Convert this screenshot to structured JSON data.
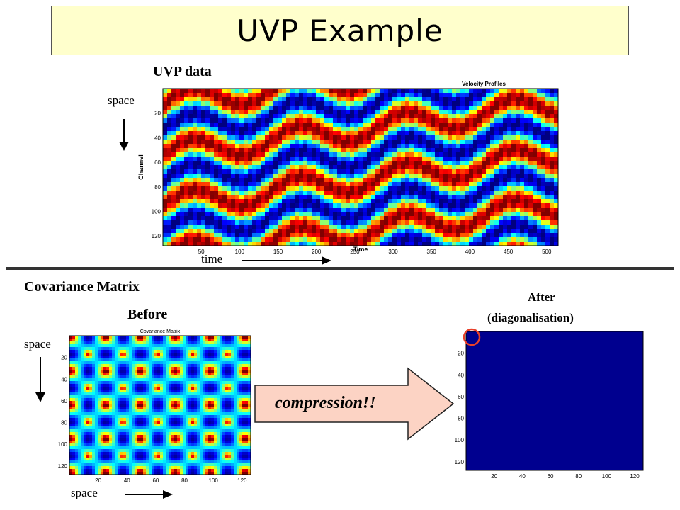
{
  "slide": {
    "title": "UVP Example",
    "uvp_label": "UVP data",
    "space_label_top": "space",
    "time_label": "time",
    "cov_label": "Covariance Matrix",
    "before_label": "Before",
    "after_label_1": "After",
    "after_label_2": "(diagonalisation)",
    "space_label_left": "space",
    "space_label_bottom": "space",
    "compression_label": "compression!!"
  },
  "uvp_plot": {
    "title": "Velocity Profiles",
    "xlabel": "Time",
    "ylabel": "Channel",
    "x_ticks": [
      "50",
      "100",
      "150",
      "200",
      "250",
      "300",
      "350",
      "400",
      "450",
      "500"
    ],
    "y_ticks": [
      "20",
      "40",
      "60",
      "80",
      "100",
      "120"
    ]
  },
  "cov_plot": {
    "title": "Covariance Matrix",
    "x_ticks": [
      "20",
      "40",
      "60",
      "80",
      "100",
      "120"
    ],
    "y_ticks": [
      "20",
      "40",
      "60",
      "80",
      "100",
      "120"
    ]
  },
  "after_plot": {
    "x_ticks": [
      "20",
      "40",
      "60",
      "80",
      "100",
      "120"
    ],
    "y_ticks": [
      "20",
      "40",
      "60",
      "80",
      "100",
      "120"
    ],
    "fill_color": "#00008f",
    "highlight_color": "#e8402a"
  },
  "colors": {
    "title_bg": "#ffffcc",
    "arrow_fill": "#fcd3c4"
  }
}
